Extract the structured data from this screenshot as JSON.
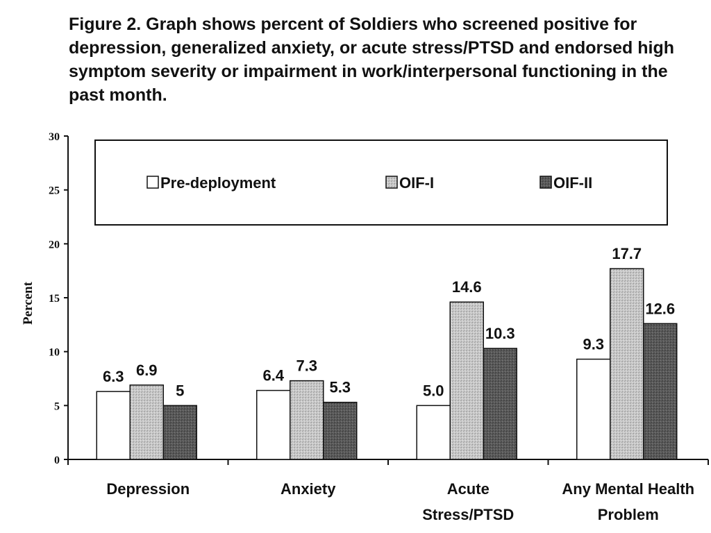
{
  "figure": {
    "caption": "Figure 2.  Graph shows percent of Soldiers who screened positive for depression, generalized anxiety, or acute stress/PTSD and endorsed high symptom severity or impairment in work/interpersonal functioning in the past month."
  },
  "chart_data": {
    "type": "bar",
    "title": "",
    "ylabel": "Percent",
    "xlabel": "",
    "ylim": [
      0,
      30
    ],
    "yticks": [
      0,
      5,
      10,
      15,
      20,
      25,
      30
    ],
    "grid": false,
    "legend_position": "top",
    "categories": [
      [
        "Depression"
      ],
      [
        "Anxiety"
      ],
      [
        "Acute",
        "Stress/PTSD"
      ],
      [
        "Any Mental Health",
        "Problem"
      ]
    ],
    "series": [
      {
        "name": "Pre-deployment",
        "values": [
          6.3,
          6.4,
          5.0,
          9.3
        ],
        "labels": [
          "6.3",
          "6.4",
          "5.0",
          "9.3"
        ],
        "color": "#ffffff"
      },
      {
        "name": "OIF-I",
        "values": [
          6.9,
          7.3,
          14.6,
          17.7
        ],
        "labels": [
          "6.9",
          "7.3",
          "14.6",
          "17.7"
        ],
        "color": "#b8b8b8"
      },
      {
        "name": "OIF-II",
        "values": [
          5,
          5.3,
          10.3,
          12.6
        ],
        "labels": [
          "5",
          "5.3",
          "10.3",
          "12.6"
        ],
        "color": "#5e5e5e"
      }
    ]
  }
}
